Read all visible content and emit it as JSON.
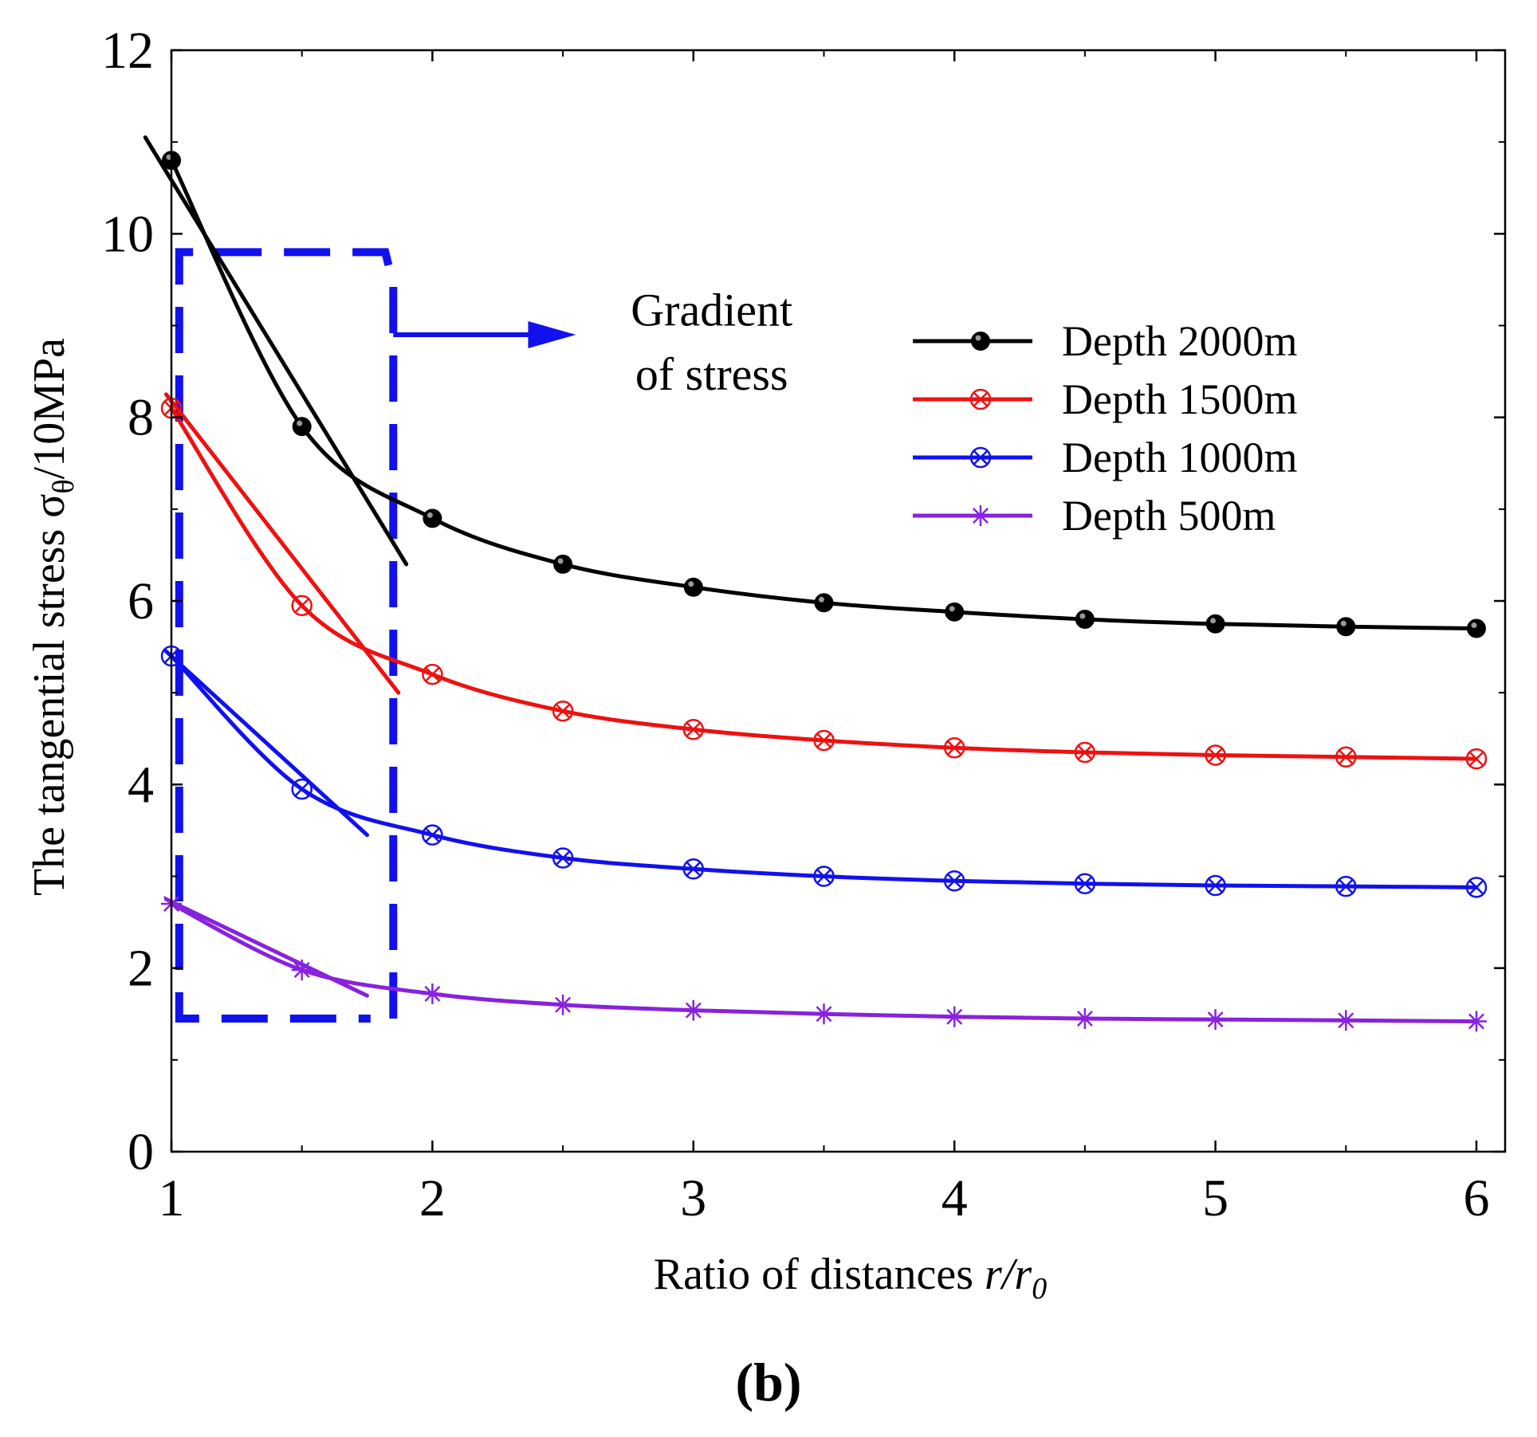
{
  "panel_label": "(b)",
  "chart_data": {
    "type": "line",
    "title": "",
    "xlabel": "Ratio of distances r/r0",
    "xlabel_parts": {
      "prefix": "Ratio of distances ",
      "var": "r/r",
      "sub": "0"
    },
    "ylabel": "The tangential stress σθ/10MPa",
    "ylabel_parts": {
      "prefix": "The tangential stress σ",
      "sub": "θ",
      "suffix": "/10MPa"
    },
    "xlim": [
      1,
      6.1
    ],
    "ylim": [
      0,
      12
    ],
    "xticks": [
      1,
      2,
      3,
      4,
      5,
      6
    ],
    "yticks": [
      0,
      2,
      4,
      6,
      8,
      10,
      12
    ],
    "grid": false,
    "legend_position": "top-right",
    "x": [
      1,
      1.5,
      2,
      2.5,
      3,
      3.5,
      4,
      4.5,
      5,
      5.5,
      6
    ],
    "series": [
      {
        "name": "Depth 2000m",
        "color": "#000000",
        "marker": "filled-circle",
        "values": [
          10.8,
          7.9,
          6.9,
          6.4,
          6.15,
          5.98,
          5.88,
          5.8,
          5.75,
          5.72,
          5.7
        ]
      },
      {
        "name": "Depth 1500m",
        "color": "#ee1111",
        "marker": "crossed-circle",
        "values": [
          8.1,
          5.95,
          5.2,
          4.8,
          4.6,
          4.48,
          4.4,
          4.35,
          4.32,
          4.3,
          4.28
        ]
      },
      {
        "name": "Depth 1000m",
        "color": "#1111ee",
        "marker": "crossed-circle",
        "values": [
          5.4,
          3.95,
          3.45,
          3.2,
          3.08,
          3.0,
          2.95,
          2.92,
          2.9,
          2.89,
          2.88
        ]
      },
      {
        "name": "Depth 500m",
        "color": "#8822dd",
        "marker": "asterisk",
        "values": [
          2.7,
          1.98,
          1.72,
          1.6,
          1.54,
          1.5,
          1.47,
          1.45,
          1.44,
          1.43,
          1.42
        ]
      }
    ],
    "tangent_lines": [
      {
        "series": "Depth 2000m",
        "from": [
          0.9,
          11.05
        ],
        "to": [
          1.9,
          6.4
        ]
      },
      {
        "series": "Depth 1500m",
        "from": [
          0.98,
          8.25
        ],
        "to": [
          1.87,
          5.0
        ]
      },
      {
        "series": "Depth 1000m",
        "from": [
          0.98,
          5.45
        ],
        "to": [
          1.75,
          3.45
        ]
      },
      {
        "series": "Depth 500m",
        "from": [
          0.98,
          2.75
        ],
        "to": [
          1.75,
          1.7
        ]
      }
    ],
    "annotation": {
      "lines": [
        "Gradient",
        "of stress"
      ],
      "color": "#1111ee",
      "box_x": [
        1.03,
        1.85
      ],
      "box_y": [
        1.45,
        9.8
      ],
      "arrow_y": 8.9,
      "arrow_to_x": 2.55,
      "text_x": 3.07,
      "text_y": [
        9.0,
        8.3
      ]
    }
  }
}
